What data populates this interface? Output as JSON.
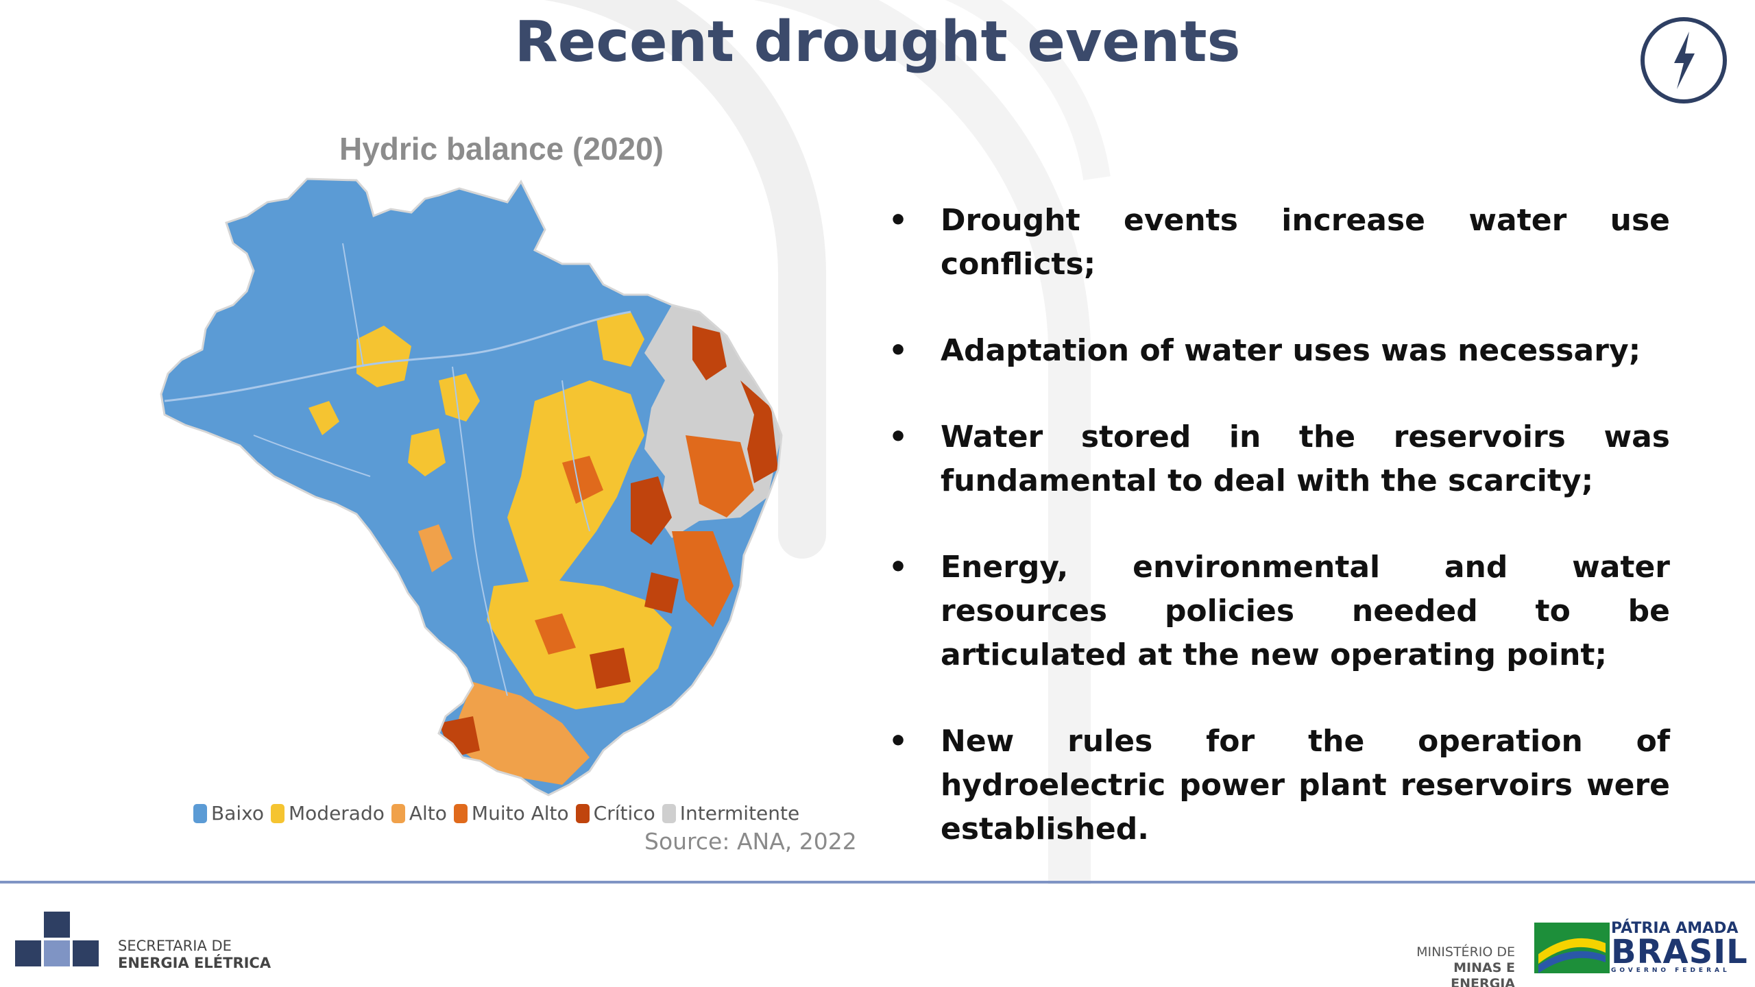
{
  "slide": {
    "title": "Recent drought events"
  },
  "header": {
    "badge_icon": "lightning-bolt-icon"
  },
  "map": {
    "title": "Hydric balance (2020)",
    "legend": [
      {
        "label": "Baixo",
        "color": "#5b9bd5"
      },
      {
        "label": "Moderado",
        "color": "#f5c431"
      },
      {
        "label": "Alto",
        "color": "#f0a14a"
      },
      {
        "label": "Muito Alto",
        "color": "#e06a1c"
      },
      {
        "label": "Crítico",
        "color": "#c0440d"
      },
      {
        "label": "Intermitente",
        "color": "#cfcfcf"
      }
    ],
    "source": "Source: ANA, 2022"
  },
  "bullets": [
    "Drought events increase water use conflicts;",
    "Adaptation of water uses was necessary;",
    "Water stored in the reservoirs was fundamental to deal with the scarcity;",
    "Energy, environmental and water resources policies needed to be articulated at the new operating point;",
    "New rules for the operation of hydroelectric power plant reservoirs were established."
  ],
  "bullet_marker": "•",
  "footer": {
    "secretaria_line1": "SECRETARIA DE",
    "secretaria_line2": "ENERGIA ELÉTRICA",
    "ministerio_line1": "MINISTÉRIO DE",
    "ministerio_line2": "MINAS E ENERGIA",
    "patria_line1": "PÁTRIA AMADA",
    "patria_line2": "BRASIL",
    "patria_line3": "GOVERNO FEDERAL"
  }
}
